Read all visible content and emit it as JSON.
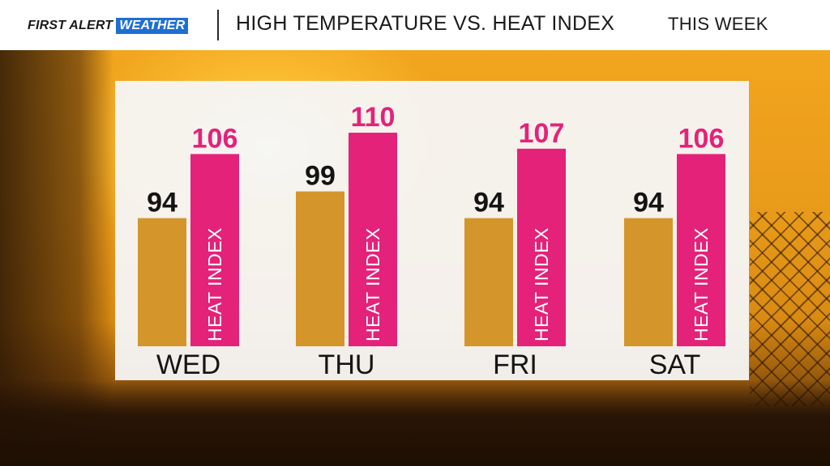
{
  "header": {
    "logo": {
      "first": "FIRST",
      "alert": "ALERT",
      "weather": "WEATHER"
    },
    "title": "HIGH TEMPERATURE VS. HEAT INDEX",
    "subtitle": "THIS WEEK"
  },
  "colors": {
    "temp_bar": "#d4962a",
    "heat_bar": "#e4227a",
    "logo_blue": "#1f6fd1"
  },
  "chart_data": {
    "type": "bar",
    "categories": [
      "WED",
      "THU",
      "FRI",
      "SAT"
    ],
    "series": [
      {
        "values": [
          94,
          99,
          94,
          94
        ]
      },
      {
        "name": "HEAT INDEX",
        "values": [
          106,
          110,
          107,
          106
        ]
      }
    ],
    "bar_label": "HEAT INDEX",
    "title": "HIGH TEMPERATURE VS. HEAT INDEX"
  }
}
